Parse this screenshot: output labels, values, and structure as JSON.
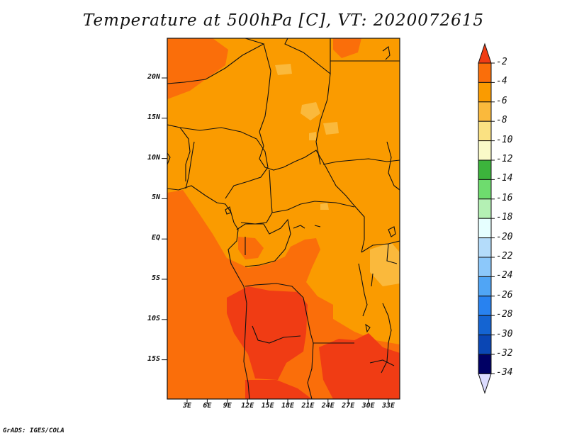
{
  "title": "Temperature at 500hPa [C], VT: 2020072615",
  "credit": "GrADS: IGES/COLA",
  "map": {
    "lat_labels": [
      "20N",
      "15N",
      "10N",
      "5N",
      "EQ",
      "5S",
      "10S",
      "15S"
    ],
    "lon_labels": [
      "3E",
      "6E",
      "9E",
      "12E",
      "15E",
      "18E",
      "21E",
      "24E",
      "27E",
      "30E",
      "33E"
    ]
  },
  "colorbar": {
    "labels": [
      "-2",
      "-4",
      "-6",
      "-8",
      "-10",
      "-12",
      "-14",
      "-16",
      "-18",
      "-20",
      "-22",
      "-24",
      "-26",
      "-28",
      "-30",
      "-32",
      "-34"
    ],
    "colors": [
      "#f03c14",
      "#fa6e0a",
      "#fa9b00",
      "#fab93c",
      "#fae182",
      "#fafac8",
      "#3cb43c",
      "#6edc6e",
      "#b4f0b4",
      "#e6ffff",
      "#b4dcfa",
      "#8cc8fa",
      "#50a5f5",
      "#2882f0",
      "#1464d2",
      "#0a46b4",
      "#000064",
      "#dcdcff"
    ]
  }
}
